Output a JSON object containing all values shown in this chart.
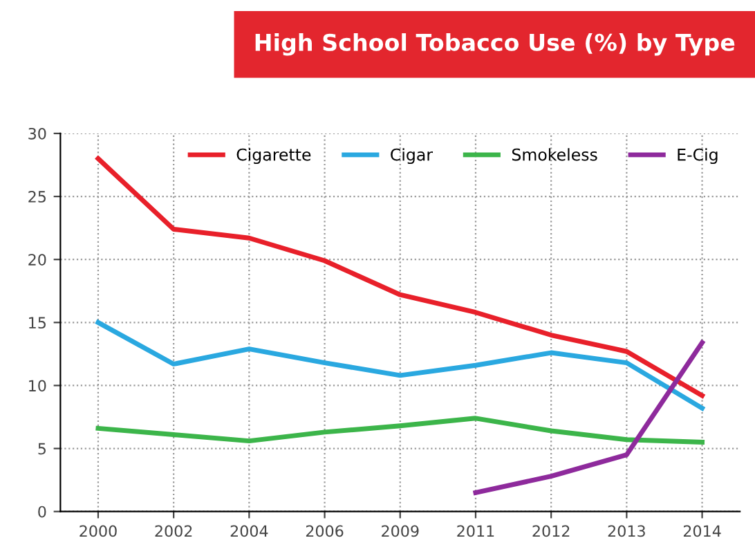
{
  "chart_data": {
    "type": "line",
    "title": "High School Tobacco Use (%) by Type",
    "categories": [
      "2000",
      "2002",
      "2004",
      "2006",
      "2009",
      "2011",
      "2012",
      "2013",
      "2014"
    ],
    "series": [
      {
        "name": "Cigarette",
        "color": "#e8202a",
        "values": [
          28.0,
          22.4,
          21.7,
          19.9,
          17.2,
          15.8,
          14.0,
          12.7,
          9.2
        ]
      },
      {
        "name": "Cigar",
        "color": "#2aa8e0",
        "values": [
          15.0,
          11.7,
          12.9,
          11.8,
          10.8,
          11.6,
          12.6,
          11.8,
          8.2
        ]
      },
      {
        "name": "Smokeless",
        "color": "#3cb54a",
        "values": [
          6.6,
          6.1,
          5.6,
          6.3,
          6.8,
          7.4,
          6.4,
          5.7,
          5.5
        ]
      },
      {
        "name": "E-Cig",
        "color": "#8e2a9c",
        "values": [
          null,
          null,
          null,
          null,
          null,
          1.5,
          2.8,
          4.5,
          13.4
        ]
      }
    ],
    "ylim": [
      0,
      30
    ],
    "yticks": [
      0,
      5,
      10,
      15,
      20,
      25,
      30
    ],
    "grid": true,
    "legend": "top",
    "marker": "none",
    "line_style": "solid"
  }
}
